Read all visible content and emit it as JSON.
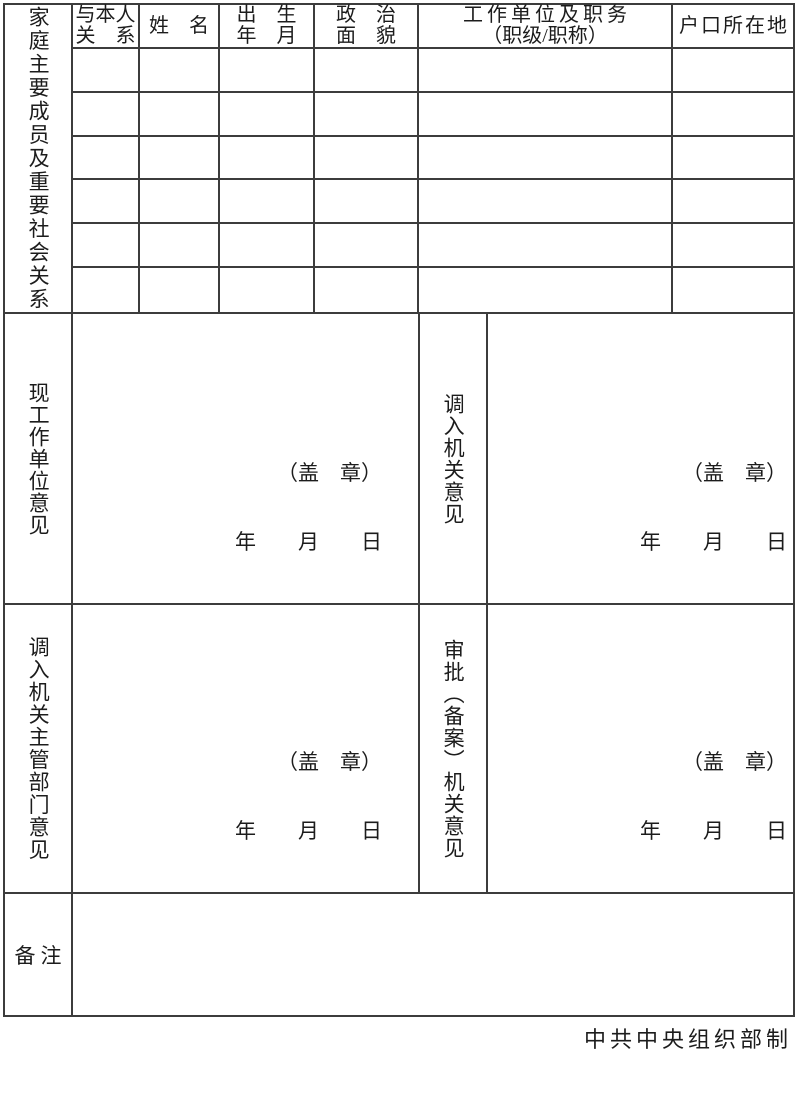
{
  "page": {
    "background": "#ffffff",
    "line_color": "#3c3c3c",
    "text_color": "#1c1c1c"
  },
  "family_section": {
    "side_label": "家庭主要成员及重要社会关系",
    "headers": [
      {
        "id": "relation",
        "lines": [
          "与本人",
          "关　系"
        ]
      },
      {
        "id": "name",
        "lines": [
          "姓　名"
        ]
      },
      {
        "id": "birth",
        "lines": [
          "出　生",
          "年　月"
        ]
      },
      {
        "id": "politics",
        "lines": [
          "政　治",
          "面　貌"
        ]
      },
      {
        "id": "work",
        "lines": [
          "工作单位及职务",
          "（职级/职称）"
        ]
      },
      {
        "id": "hukou",
        "lines": [
          "户口所在地"
        ]
      }
    ],
    "rows": [
      [
        "",
        "",
        "",
        "",
        "",
        ""
      ],
      [
        "",
        "",
        "",
        "",
        "",
        ""
      ],
      [
        "",
        "",
        "",
        "",
        "",
        ""
      ],
      [
        "",
        "",
        "",
        "",
        "",
        ""
      ],
      [
        "",
        "",
        "",
        "",
        "",
        ""
      ],
      [
        "",
        "",
        "",
        "",
        "",
        ""
      ]
    ]
  },
  "opinions": [
    {
      "label": "现工作单位意见",
      "stamp": "（盖　章）",
      "date": "年　　月　　日",
      "content": ""
    },
    {
      "label": "调入机关意见",
      "stamp": "（盖　章）",
      "date": "年　　月　　日",
      "content": ""
    },
    {
      "label": "调入机关主管部门意见",
      "stamp": "（盖　章）",
      "date": "年　　月　　日",
      "content": ""
    },
    {
      "label": "审批（备案）机关意见",
      "stamp": "（盖　章）",
      "date": "年　　月　　日",
      "content": ""
    }
  ],
  "remarks": {
    "label": "备注",
    "content": ""
  },
  "footer": {
    "issuer": "中共中央组织部制"
  }
}
